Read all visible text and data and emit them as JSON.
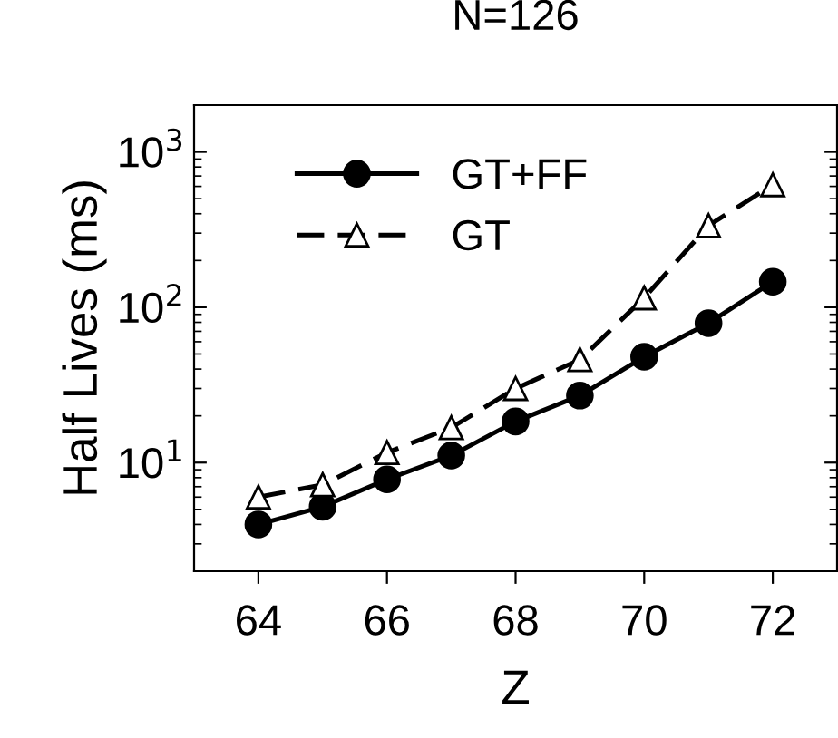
{
  "chart_data": {
    "type": "line",
    "title": "N=126",
    "xlabel": "Z",
    "ylabel": "Half Lives (ms)",
    "x": [
      64,
      65,
      66,
      67,
      68,
      69,
      70,
      71,
      72
    ],
    "series": [
      {
        "name": "GT+FF",
        "color": "#000000",
        "marker": "circle",
        "line_style": "solid",
        "values": [
          4.0,
          5.2,
          7.8,
          11.1,
          18.4,
          27,
          48,
          79,
          146
        ]
      },
      {
        "name": "GT",
        "color": "#000000",
        "marker": "triangle",
        "line_style": "dashed",
        "values": [
          6.0,
          7.2,
          11.6,
          16.8,
          30,
          46,
          115,
          335,
          615
        ]
      }
    ],
    "log": "y",
    "xlim": [
      63,
      73
    ],
    "ylim": [
      2,
      2000
    ],
    "xticks": [
      64,
      66,
      68,
      70,
      72
    ],
    "yticks": [
      {
        "value": 10,
        "label": "10$^{1}$"
      },
      {
        "value": 100,
        "label": "10$^{2}$"
      },
      {
        "value": 1000,
        "label": "10$^{3}$"
      }
    ],
    "grid": false,
    "legend": "top left"
  }
}
